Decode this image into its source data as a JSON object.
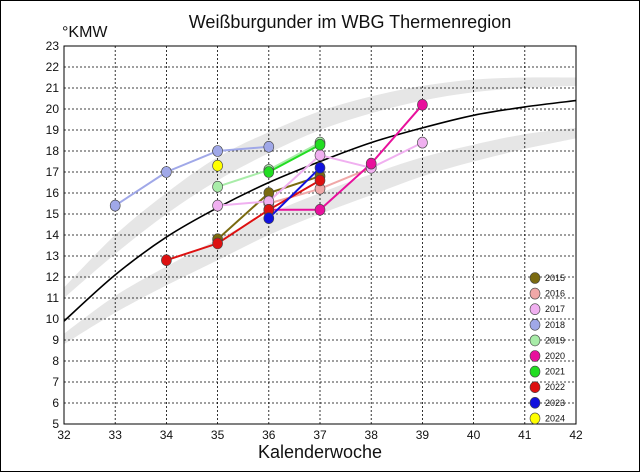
{
  "chart_data": {
    "type": "line",
    "title": "Weißburgunder im WBG Thermenregion",
    "xlabel": "Kalenderwoche",
    "ylabel": "°KMW",
    "xlim": [
      32,
      42
    ],
    "ylim": [
      5,
      23
    ],
    "x_ticks": [
      "32",
      "33",
      "34",
      "35",
      "36",
      "37",
      "38",
      "39",
      "40",
      "41",
      "42"
    ],
    "y_ticks": [
      "5",
      "6",
      "7",
      "8",
      "9",
      "10",
      "11",
      "12",
      "13",
      "14",
      "15",
      "16",
      "17",
      "18",
      "19",
      "20",
      "21",
      "22",
      "23"
    ],
    "grid": true,
    "legend_position": "bottom-right",
    "reference_curve": {
      "color": "#000000",
      "points": [
        [
          32,
          9.9
        ],
        [
          33,
          12.1
        ],
        [
          34,
          13.9
        ],
        [
          35,
          15.3
        ],
        [
          36,
          16.5
        ],
        [
          37,
          17.5
        ],
        [
          38,
          18.4
        ],
        [
          39,
          19.1
        ],
        [
          40,
          19.7
        ],
        [
          41,
          20.1
        ],
        [
          42,
          20.4
        ]
      ]
    },
    "band_outer": {
      "color": "#e6e6e6",
      "upper": [
        [
          32,
          11.5
        ],
        [
          33,
          14.0
        ],
        [
          34,
          16.0
        ],
        [
          35,
          17.7
        ],
        [
          36,
          18.9
        ],
        [
          37,
          19.9
        ],
        [
          38,
          20.6
        ],
        [
          39,
          21.1
        ],
        [
          40,
          21.4
        ],
        [
          41,
          21.5
        ],
        [
          42,
          21.5
        ]
      ],
      "lower": [
        [
          32,
          8.8
        ],
        [
          33,
          10.3
        ],
        [
          34,
          11.6
        ],
        [
          35,
          12.8
        ],
        [
          36,
          14.0
        ],
        [
          37,
          15.0
        ],
        [
          38,
          15.9
        ],
        [
          39,
          16.8
        ],
        [
          40,
          17.5
        ],
        [
          41,
          18.1
        ],
        [
          42,
          18.6
        ]
      ]
    },
    "band_inner": {
      "color": "#ffffff",
      "upper": [
        [
          32,
          11.0
        ],
        [
          33,
          13.1
        ],
        [
          34,
          15.0
        ],
        [
          35,
          16.6
        ],
        [
          36,
          17.9
        ],
        [
          37,
          19.0
        ],
        [
          38,
          19.8
        ],
        [
          39,
          20.4
        ],
        [
          40,
          20.8
        ],
        [
          41,
          21.0
        ],
        [
          42,
          21.1
        ]
      ],
      "lower": [
        [
          32,
          9.3
        ],
        [
          33,
          11.1
        ],
        [
          34,
          12.5
        ],
        [
          35,
          13.8
        ],
        [
          36,
          15.0
        ],
        [
          37,
          16.0
        ],
        [
          38,
          16.9
        ],
        [
          39,
          17.7
        ],
        [
          40,
          18.3
        ],
        [
          41,
          18.8
        ],
        [
          42,
          19.1
        ]
      ]
    },
    "series": [
      {
        "name": "2015",
        "color": "#7a6a10",
        "points": [
          [
            35,
            13.8
          ],
          [
            36,
            16.0
          ],
          [
            37,
            16.8
          ]
        ]
      },
      {
        "name": "2016",
        "color": "#f0a8a8",
        "points": [
          [
            36,
            15.5
          ],
          [
            37,
            16.2
          ],
          [
            38,
            17.2
          ]
        ]
      },
      {
        "name": "2017",
        "color": "#f0b0f0",
        "points": [
          [
            35,
            15.4
          ],
          [
            36,
            15.6
          ],
          [
            37,
            17.8
          ],
          [
            38,
            17.2
          ],
          [
            39,
            18.4
          ]
        ]
      },
      {
        "name": "2018",
        "color": "#a0a8e8",
        "points": [
          [
            33,
            15.4
          ],
          [
            34,
            17.0
          ],
          [
            35,
            18.0
          ],
          [
            36,
            18.2
          ]
        ]
      },
      {
        "name": "2019",
        "color": "#a8eca8",
        "points": [
          [
            35,
            16.3
          ],
          [
            36,
            17.1
          ],
          [
            37,
            18.4
          ]
        ]
      },
      {
        "name": "2020",
        "color": "#e8109c",
        "points": [
          [
            36,
            15.2
          ],
          [
            37,
            15.2
          ],
          [
            38,
            17.4
          ],
          [
            39,
            20.2
          ]
        ]
      },
      {
        "name": "2021",
        "color": "#22dd22",
        "points": [
          [
            36,
            17.0
          ],
          [
            37,
            18.3
          ]
        ]
      },
      {
        "name": "2022",
        "color": "#dd1111",
        "points": [
          [
            34,
            12.8
          ],
          [
            35,
            13.6
          ],
          [
            36,
            15.2
          ],
          [
            37,
            16.6
          ]
        ]
      },
      {
        "name": "2023",
        "color": "#1111dd",
        "points": [
          [
            36,
            14.8
          ],
          [
            37,
            17.2
          ]
        ]
      },
      {
        "name": "2024",
        "color": "#ffff00",
        "points": [
          [
            35,
            17.3
          ]
        ]
      }
    ]
  }
}
